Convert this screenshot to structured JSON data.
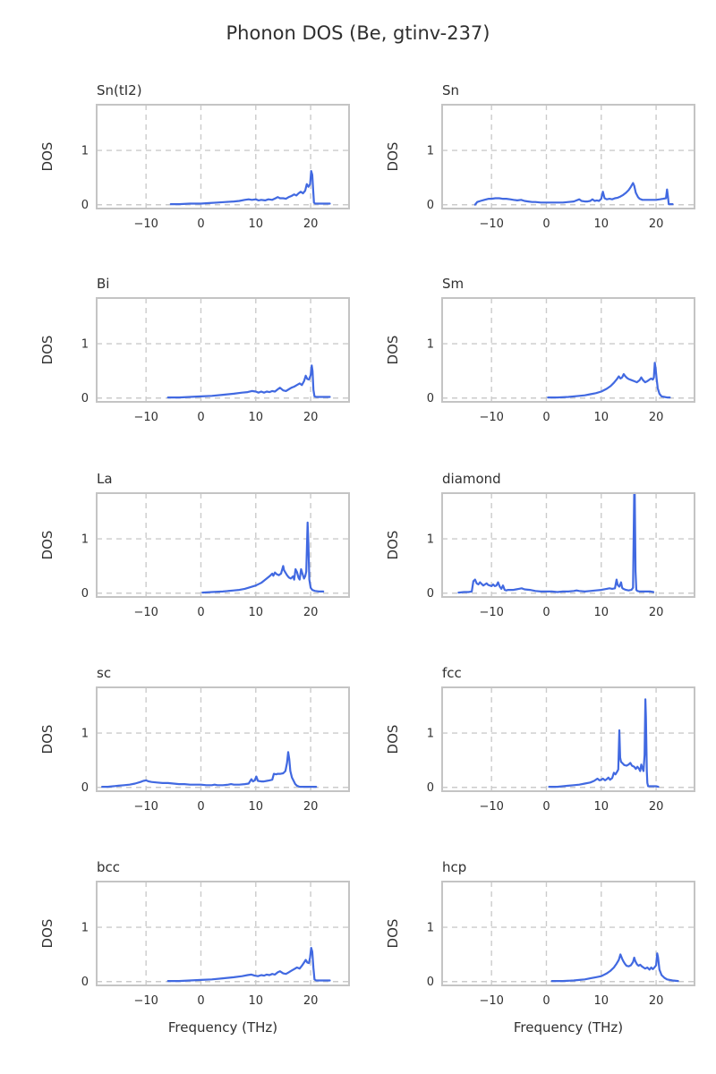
{
  "chart_data": {
    "type": "line",
    "title": "Phonon DOS (Be, gtinv-237)",
    "xlabel": "Frequency (THz)",
    "ylabel": "DOS",
    "xlim": [
      -19,
      27
    ],
    "ylim": [
      -0.07,
      1.84
    ],
    "xticks": [
      -10,
      0,
      10,
      20
    ],
    "yticks": [
      0,
      1
    ],
    "grid": true,
    "grid_style": "dashed",
    "legend": false,
    "line_color": "#4169E1",
    "grid_color": "#cbcbcb",
    "spine_color": "#c4c4c4",
    "text_color": "#303030",
    "layout": "5 rows x 2 columns",
    "subplots": [
      {
        "title": "Sn(tI2)",
        "x": [
          -5.5,
          -4,
          -2,
          0,
          1.5,
          3,
          4.5,
          6,
          7,
          8,
          8.7,
          9.3,
          10,
          10.5,
          11,
          11.7,
          12.3,
          13,
          13.6,
          14,
          14.4,
          15,
          15.5,
          16,
          16.5,
          17,
          17.4,
          17.8,
          18.2,
          18.6,
          19,
          19.3,
          19.6,
          19.9,
          20.1,
          20.3,
          20.45,
          20.6,
          20.8,
          21.2,
          22,
          23,
          23.5
        ],
        "y": [
          0.01,
          0.01,
          0.02,
          0.02,
          0.03,
          0.04,
          0.05,
          0.06,
          0.07,
          0.09,
          0.1,
          0.09,
          0.1,
          0.08,
          0.09,
          0.08,
          0.1,
          0.09,
          0.12,
          0.14,
          0.12,
          0.12,
          0.11,
          0.14,
          0.16,
          0.19,
          0.17,
          0.21,
          0.24,
          0.21,
          0.26,
          0.38,
          0.33,
          0.38,
          0.62,
          0.55,
          0.3,
          0.04,
          0.02,
          0.02,
          0.02,
          0.02,
          0.02
        ]
      },
      {
        "title": "Sn",
        "x": [
          -13,
          -12.6,
          -12,
          -11.3,
          -10.5,
          -10,
          -9.3,
          -8.6,
          -8,
          -7.3,
          -6.6,
          -6,
          -5.3,
          -4.6,
          -4,
          -3.3,
          -2.6,
          -2,
          -1,
          0,
          1,
          2,
          3,
          4,
          5,
          5.5,
          6,
          6.4,
          7,
          7.5,
          8,
          8.4,
          8.8,
          9.2,
          9.6,
          10,
          10.3,
          10.6,
          11,
          11.5,
          12,
          12.5,
          13,
          13.5,
          14,
          14.5,
          15,
          15.4,
          15.8,
          16,
          16.3,
          16.7,
          17,
          17.5,
          18,
          19,
          20,
          20.7,
          21.3,
          21.8,
          22,
          22.15,
          22.3,
          22.5,
          23
        ],
        "y": [
          0.0,
          0.05,
          0.07,
          0.09,
          0.11,
          0.11,
          0.12,
          0.12,
          0.11,
          0.11,
          0.1,
          0.09,
          0.08,
          0.09,
          0.07,
          0.06,
          0.05,
          0.05,
          0.04,
          0.04,
          0.04,
          0.04,
          0.04,
          0.05,
          0.06,
          0.08,
          0.1,
          0.07,
          0.06,
          0.06,
          0.07,
          0.1,
          0.07,
          0.08,
          0.07,
          0.11,
          0.24,
          0.12,
          0.1,
          0.11,
          0.1,
          0.12,
          0.13,
          0.15,
          0.18,
          0.22,
          0.27,
          0.33,
          0.4,
          0.35,
          0.22,
          0.14,
          0.11,
          0.09,
          0.09,
          0.09,
          0.09,
          0.1,
          0.11,
          0.12,
          0.28,
          0.15,
          0.01,
          0.01,
          0.01
        ]
      },
      {
        "title": "Bi",
        "x": [
          -6,
          -4,
          -2,
          0,
          2,
          4,
          6,
          7.5,
          8.5,
          9.3,
          10,
          10.5,
          11,
          11.5,
          12,
          12.5,
          13,
          13.5,
          14,
          14.4,
          15,
          15.5,
          16,
          16.5,
          17,
          17.5,
          18,
          18.4,
          18.8,
          19.1,
          19.4,
          19.7,
          20,
          20.2,
          20.35,
          20.5,
          20.7,
          21,
          22,
          23,
          23.5
        ],
        "y": [
          0.01,
          0.01,
          0.02,
          0.03,
          0.04,
          0.06,
          0.08,
          0.1,
          0.11,
          0.13,
          0.12,
          0.1,
          0.12,
          0.1,
          0.12,
          0.11,
          0.13,
          0.12,
          0.16,
          0.19,
          0.14,
          0.13,
          0.16,
          0.19,
          0.21,
          0.24,
          0.27,
          0.24,
          0.31,
          0.41,
          0.35,
          0.34,
          0.42,
          0.6,
          0.5,
          0.15,
          0.03,
          0.02,
          0.02,
          0.02,
          0.02
        ]
      },
      {
        "title": "Sm",
        "x": [
          0.3,
          2,
          4,
          6,
          7,
          8,
          9,
          10,
          11,
          11.7,
          12.3,
          12.8,
          13.2,
          13.5,
          13.8,
          14.1,
          14.4,
          14.7,
          15,
          15.5,
          16,
          16.5,
          17,
          17.3,
          17.6,
          18,
          18.4,
          18.8,
          19.1,
          19.4,
          19.6,
          19.75,
          19.9,
          20.1,
          20.3,
          20.6,
          21,
          21.5,
          22,
          22.5
        ],
        "y": [
          0.01,
          0.01,
          0.02,
          0.04,
          0.05,
          0.07,
          0.09,
          0.12,
          0.17,
          0.22,
          0.28,
          0.34,
          0.4,
          0.36,
          0.38,
          0.44,
          0.4,
          0.37,
          0.35,
          0.33,
          0.31,
          0.29,
          0.33,
          0.38,
          0.33,
          0.29,
          0.31,
          0.34,
          0.36,
          0.34,
          0.38,
          0.65,
          0.55,
          0.35,
          0.18,
          0.08,
          0.03,
          0.02,
          0.01,
          0.01
        ]
      },
      {
        "title": "La",
        "x": [
          0.3,
          2,
          4,
          6,
          7,
          8,
          9,
          10,
          11,
          12,
          12.5,
          13,
          13.2,
          13.5,
          13.8,
          14.2,
          14.6,
          15,
          15.15,
          15.4,
          15.7,
          16,
          16.4,
          16.8,
          17,
          17.25,
          17.5,
          17.8,
          18,
          18.25,
          18.5,
          18.8,
          19,
          19.2,
          19.45,
          19.6,
          19.75,
          20,
          20.3,
          20.8,
          21.5,
          22.3
        ],
        "y": [
          0.01,
          0.02,
          0.03,
          0.05,
          0.06,
          0.08,
          0.11,
          0.14,
          0.19,
          0.27,
          0.31,
          0.36,
          0.32,
          0.38,
          0.35,
          0.33,
          0.36,
          0.5,
          0.42,
          0.38,
          0.33,
          0.29,
          0.27,
          0.31,
          0.25,
          0.44,
          0.39,
          0.28,
          0.25,
          0.44,
          0.36,
          0.27,
          0.31,
          0.4,
          1.3,
          0.9,
          0.25,
          0.1,
          0.06,
          0.04,
          0.03,
          0.03
        ]
      },
      {
        "title": "diamond",
        "x": [
          -16,
          -15,
          -14.2,
          -13.6,
          -13.3,
          -13,
          -12.7,
          -12.4,
          -12.1,
          -11.8,
          -11.5,
          -11.2,
          -10.9,
          -10.6,
          -10.3,
          -10,
          -9.7,
          -9.4,
          -9.1,
          -8.8,
          -8.5,
          -8.2,
          -7.9,
          -7.6,
          -7.3,
          -7,
          -6.5,
          -6,
          -5.5,
          -5,
          -4.5,
          -4,
          -3,
          -2,
          -1,
          0,
          1,
          2,
          3,
          4,
          5,
          5.5,
          6,
          7,
          8,
          9,
          10,
          11,
          11.5,
          12,
          12.5,
          12.8,
          13,
          13.3,
          13.6,
          13.8,
          14,
          14.5,
          15,
          15.5,
          15.8,
          16,
          16.1,
          16.25,
          16.4,
          16.6,
          17,
          18,
          19,
          19.5
        ],
        "y": [
          0.01,
          0.02,
          0.02,
          0.03,
          0.22,
          0.25,
          0.18,
          0.16,
          0.2,
          0.17,
          0.14,
          0.16,
          0.18,
          0.15,
          0.14,
          0.13,
          0.16,
          0.13,
          0.14,
          0.2,
          0.12,
          0.08,
          0.14,
          0.06,
          0.05,
          0.06,
          0.06,
          0.06,
          0.07,
          0.08,
          0.09,
          0.07,
          0.06,
          0.04,
          0.03,
          0.03,
          0.03,
          0.02,
          0.03,
          0.03,
          0.04,
          0.05,
          0.04,
          0.03,
          0.04,
          0.05,
          0.06,
          0.08,
          0.09,
          0.08,
          0.09,
          0.25,
          0.15,
          0.12,
          0.2,
          0.1,
          0.08,
          0.06,
          0.05,
          0.06,
          0.1,
          1.9,
          1.9,
          0.4,
          0.06,
          0.04,
          0.03,
          0.03,
          0.03,
          0.02
        ]
      },
      {
        "title": "sc",
        "x": [
          -18,
          -17,
          -16,
          -15,
          -14,
          -13,
          -12,
          -11,
          -10.5,
          -10,
          -9.5,
          -9,
          -8,
          -7,
          -6,
          -5,
          -4,
          -3,
          -2,
          -1,
          0,
          1,
          2,
          2.5,
          3,
          4,
          5,
          5.5,
          6,
          7,
          8,
          8.7,
          9.2,
          9.5,
          9.8,
          10.1,
          10.4,
          11,
          11.5,
          12,
          12.5,
          13,
          13.3,
          13.7,
          14,
          14.5,
          15,
          15.4,
          15.7,
          15.9,
          16.1,
          16.3,
          16.6,
          16.9,
          17.2,
          17.5,
          18,
          19,
          20,
          21
        ],
        "y": [
          0.01,
          0.01,
          0.02,
          0.03,
          0.04,
          0.05,
          0.07,
          0.1,
          0.12,
          0.13,
          0.11,
          0.1,
          0.09,
          0.08,
          0.08,
          0.07,
          0.06,
          0.06,
          0.05,
          0.05,
          0.05,
          0.04,
          0.04,
          0.05,
          0.04,
          0.04,
          0.05,
          0.06,
          0.05,
          0.05,
          0.06,
          0.07,
          0.15,
          0.11,
          0.13,
          0.2,
          0.12,
          0.11,
          0.11,
          0.12,
          0.13,
          0.14,
          0.25,
          0.24,
          0.25,
          0.25,
          0.26,
          0.3,
          0.45,
          0.65,
          0.52,
          0.3,
          0.18,
          0.12,
          0.06,
          0.03,
          0.01,
          0.01,
          0.01,
          0.01
        ]
      },
      {
        "title": "fcc",
        "x": [
          0.5,
          2,
          3,
          4,
          5,
          6,
          7,
          8,
          8.7,
          9.3,
          9.7,
          10,
          10.3,
          10.7,
          11,
          11.3,
          11.6,
          12,
          12.3,
          12.6,
          12.9,
          13.1,
          13.3,
          13.45,
          13.6,
          13.9,
          14.2,
          14.6,
          15,
          15.3,
          15.6,
          16,
          16.3,
          16.6,
          16.9,
          17.1,
          17.3,
          17.5,
          17.7,
          17.9,
          18.05,
          18.15,
          18.3,
          18.4,
          18.55,
          19,
          19.5,
          20,
          20.4
        ],
        "y": [
          0.01,
          0.01,
          0.02,
          0.03,
          0.04,
          0.05,
          0.07,
          0.09,
          0.12,
          0.16,
          0.13,
          0.14,
          0.16,
          0.13,
          0.15,
          0.18,
          0.14,
          0.17,
          0.27,
          0.24,
          0.29,
          0.33,
          1.05,
          0.55,
          0.47,
          0.44,
          0.41,
          0.4,
          0.42,
          0.45,
          0.4,
          0.38,
          0.34,
          0.38,
          0.34,
          0.3,
          0.42,
          0.35,
          0.3,
          0.6,
          1.62,
          1.3,
          0.3,
          0.08,
          0.02,
          0.02,
          0.02,
          0.02,
          0.01
        ]
      },
      {
        "title": "bcc",
        "x": [
          -6,
          -4,
          -2,
          0,
          2,
          4,
          6,
          7.5,
          8.5,
          9.2,
          9.8,
          10.4,
          11,
          11.5,
          12,
          12.5,
          13,
          13.5,
          14,
          14.4,
          15,
          15.5,
          16,
          16.5,
          17,
          17.5,
          18,
          18.4,
          18.8,
          19.1,
          19.4,
          19.7,
          19.9,
          20.1,
          20.3,
          20.5,
          20.7,
          21,
          22,
          23,
          23.5
        ],
        "y": [
          0.01,
          0.01,
          0.02,
          0.03,
          0.04,
          0.06,
          0.08,
          0.1,
          0.12,
          0.13,
          0.11,
          0.1,
          0.12,
          0.11,
          0.13,
          0.12,
          0.14,
          0.13,
          0.17,
          0.19,
          0.15,
          0.14,
          0.17,
          0.2,
          0.23,
          0.26,
          0.24,
          0.29,
          0.35,
          0.4,
          0.35,
          0.34,
          0.45,
          0.62,
          0.55,
          0.25,
          0.04,
          0.02,
          0.02,
          0.02,
          0.02
        ]
      },
      {
        "title": "hcp",
        "x": [
          1,
          3,
          5,
          6,
          7,
          8,
          9,
          10,
          11,
          11.7,
          12.3,
          12.8,
          13.2,
          13.5,
          13.8,
          14,
          14.3,
          14.6,
          15,
          15.4,
          15.8,
          16,
          16.2,
          16.5,
          16.8,
          17.1,
          17.4,
          17.7,
          18,
          18.4,
          18.8,
          19.1,
          19.4,
          19.7,
          20,
          20.2,
          20.35,
          20.6,
          21,
          21.5,
          22,
          23,
          24
        ],
        "y": [
          0.01,
          0.01,
          0.02,
          0.03,
          0.04,
          0.06,
          0.08,
          0.1,
          0.15,
          0.2,
          0.26,
          0.33,
          0.4,
          0.5,
          0.42,
          0.38,
          0.33,
          0.29,
          0.28,
          0.3,
          0.36,
          0.44,
          0.38,
          0.32,
          0.29,
          0.31,
          0.28,
          0.26,
          0.24,
          0.26,
          0.22,
          0.26,
          0.23,
          0.26,
          0.3,
          0.52,
          0.45,
          0.22,
          0.12,
          0.07,
          0.04,
          0.02,
          0.01
        ]
      }
    ]
  }
}
